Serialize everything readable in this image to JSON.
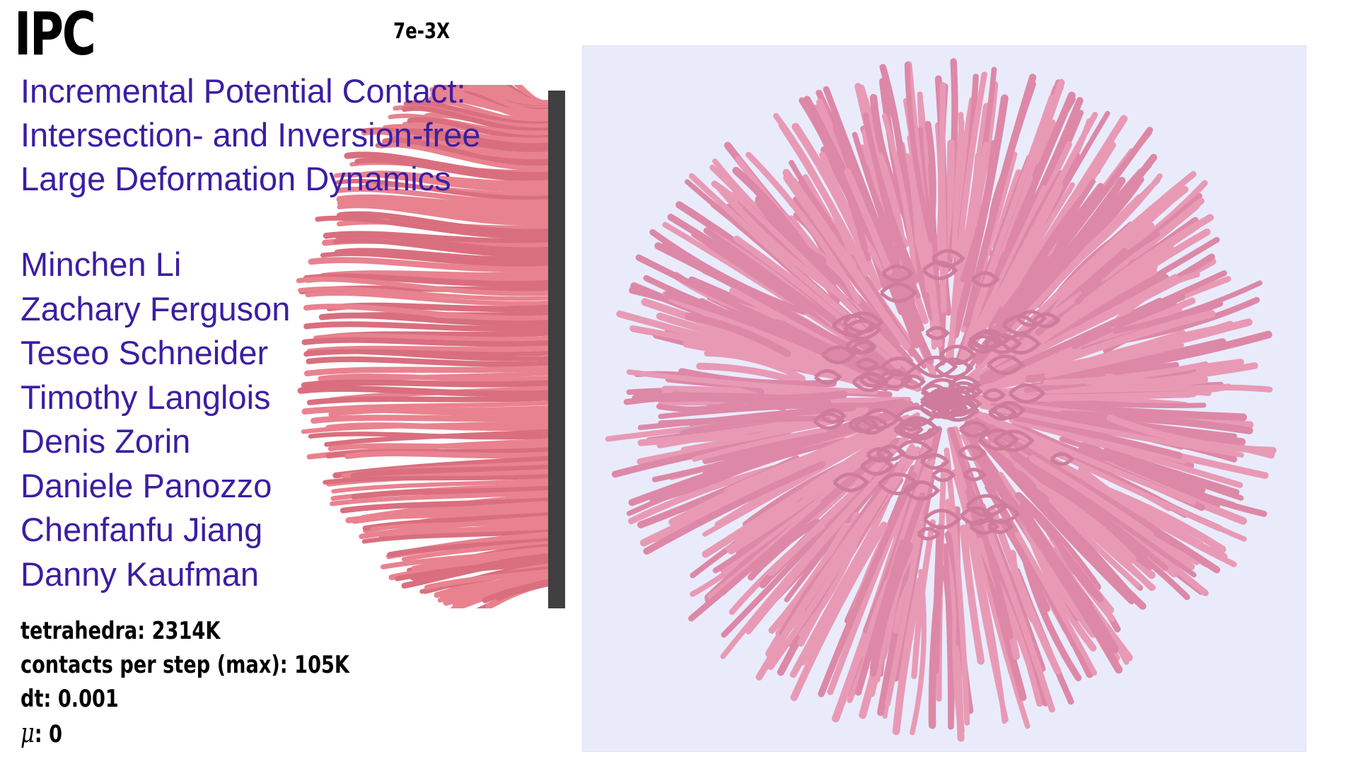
{
  "logo": "IPC",
  "speed": "7e-3X",
  "title": {
    "line1": "Incremental Potential Contact:",
    "line2": "Intersection- and Inversion-free",
    "line3": "Large Deformation Dynamics"
  },
  "authors": [
    "Minchen Li",
    "Zachary Ferguson",
    "Teseo Schneider",
    "Timothy Langlois",
    "Denis Zorin",
    "Daniele Panozzo",
    "Chenfanfu Jiang",
    "Danny Kaufman"
  ],
  "stats": {
    "tetrahedra": "tetrahedra: 2314K",
    "contacts": "contacts per step (max): 105K",
    "dt": "dt: 0.001",
    "mu_symbol": "μ",
    "mu_value": ": 0"
  },
  "colors": {
    "title_text": "#3b1ea3",
    "tentacle_side": "#e9828f",
    "tentacle_top": "#e89ab5",
    "wall": "#3f3f3f",
    "panel_bg": "#e9ebfb"
  }
}
